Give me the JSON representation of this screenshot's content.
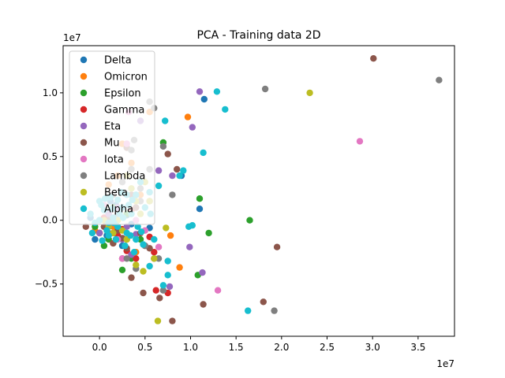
{
  "chart_data": {
    "type": "scatter",
    "title": "PCA - Training data 2D",
    "xlabel": "",
    "ylabel": "",
    "x_offset_label": "1e7",
    "y_offset_label": "1e7",
    "xlim": [
      -0.4,
      3.9
    ],
    "ylim": [
      -0.91,
      1.37
    ],
    "x_ticks": [
      0.0,
      0.5,
      1.0,
      1.5,
      2.0,
      2.5,
      3.0,
      3.5
    ],
    "x_tick_labels": [
      "0.0",
      "0.5",
      "1.0",
      "1.5",
      "2.0",
      "2.5",
      "3.0",
      "3.5"
    ],
    "y_ticks": [
      -0.5,
      0.0,
      0.5,
      1.0
    ],
    "y_tick_labels": [
      "−0.5",
      "0.0",
      "0.5",
      "1.0"
    ],
    "grid": false,
    "legend_position": "top-left",
    "series": [
      {
        "name": "Delta",
        "color": "#1f77b4",
        "points": [
          [
            0.0,
            0.0
          ],
          [
            0.05,
            -0.05
          ],
          [
            0.1,
            0.05
          ],
          [
            0.15,
            -0.1
          ],
          [
            -0.05,
            -0.15
          ],
          [
            0.2,
            -0.08
          ],
          [
            0.3,
            0.04
          ],
          [
            0.12,
            0.15
          ],
          [
            0.4,
            0.2
          ],
          [
            0.55,
            -0.06
          ],
          [
            0.9,
            0.35
          ],
          [
            1.15,
            0.95
          ],
          [
            1.1,
            0.09
          ],
          [
            0.25,
            -0.2
          ],
          [
            0.18,
            0.12
          ],
          [
            0.08,
            -0.12
          ],
          [
            0.35,
            -0.03
          ],
          [
            -0.1,
            0.02
          ]
        ]
      },
      {
        "name": "Omicron",
        "color": "#ff7f0e",
        "points": [
          [
            0.97,
            0.81
          ],
          [
            0.78,
            -0.12
          ],
          [
            0.88,
            -0.37
          ],
          [
            0.45,
            0.2
          ],
          [
            0.2,
            0.35
          ],
          [
            0.1,
            0.28
          ],
          [
            0.3,
            -0.15
          ],
          [
            0.05,
            0.1
          ],
          [
            0.55,
            0.85
          ],
          [
            0.25,
            0.6
          ],
          [
            0.15,
            -0.05
          ],
          [
            0.4,
            -0.25
          ],
          [
            0.35,
            0.45
          ],
          [
            -0.05,
            -0.08
          ]
        ]
      },
      {
        "name": "Epsilon",
        "color": "#2ca02c",
        "points": [
          [
            0.7,
            0.61
          ],
          [
            1.1,
            0.17
          ],
          [
            1.2,
            -0.1
          ],
          [
            1.65,
            0.0
          ],
          [
            1.08,
            -0.43
          ],
          [
            0.25,
            -0.39
          ],
          [
            0.0,
            -0.1
          ],
          [
            0.1,
            -0.15
          ],
          [
            0.2,
            -0.05
          ],
          [
            0.3,
            0.05
          ],
          [
            0.05,
            -0.2
          ],
          [
            0.15,
            0.1
          ],
          [
            0.35,
            -0.3
          ],
          [
            0.45,
            -0.15
          ],
          [
            -0.05,
            -0.05
          ]
        ]
      },
      {
        "name": "Gamma",
        "color": "#d62728",
        "points": [
          [
            0.62,
            -0.55
          ],
          [
            0.75,
            -0.57
          ],
          [
            0.55,
            -0.13
          ],
          [
            0.25,
            -0.07
          ],
          [
            0.3,
            -0.24
          ],
          [
            0.2,
            -0.12
          ],
          [
            0.1,
            -0.05
          ],
          [
            0.4,
            -0.3
          ],
          [
            0.35,
            0.08
          ],
          [
            0.05,
            0.02
          ],
          [
            0.15,
            -0.18
          ],
          [
            0.5,
            -0.2
          ],
          [
            0.0,
            -0.1
          ],
          [
            0.6,
            -0.25
          ]
        ]
      },
      {
        "name": "Eta",
        "color": "#9467bd",
        "points": [
          [
            1.1,
            1.01
          ],
          [
            1.02,
            0.73
          ],
          [
            0.65,
            0.39
          ],
          [
            0.8,
            0.35
          ],
          [
            0.45,
            0.78
          ],
          [
            0.99,
            -0.21
          ],
          [
            1.13,
            -0.41
          ],
          [
            0.77,
            -0.52
          ],
          [
            0.35,
            -0.27
          ],
          [
            0.4,
            -0.11
          ],
          [
            0.3,
            -0.05
          ],
          [
            0.2,
            0.1
          ],
          [
            0.55,
            0.15
          ],
          [
            0.25,
            -0.15
          ],
          [
            0.1,
            0.05
          ],
          [
            0.0,
            -0.1
          ],
          [
            0.15,
            -0.02
          ]
        ]
      },
      {
        "name": "Mu",
        "color": "#8c564b",
        "points": [
          [
            3.01,
            1.27
          ],
          [
            0.75,
            0.52
          ],
          [
            0.85,
            0.4
          ],
          [
            1.95,
            -0.21
          ],
          [
            1.8,
            -0.64
          ],
          [
            1.14,
            -0.66
          ],
          [
            0.8,
            -0.79
          ],
          [
            0.66,
            -0.61
          ],
          [
            0.48,
            -0.57
          ],
          [
            0.35,
            -0.45
          ],
          [
            0.55,
            -0.22
          ],
          [
            0.6,
            -0.3
          ],
          [
            0.25,
            -0.14
          ],
          [
            0.3,
            -0.22
          ],
          [
            0.2,
            -0.08
          ],
          [
            0.1,
            0.0
          ],
          [
            0.15,
            -0.18
          ],
          [
            0.45,
            -0.1
          ],
          [
            0.05,
            -0.05
          ],
          [
            0.35,
            0.2
          ],
          [
            0.3,
            0.57
          ],
          [
            -0.15,
            -0.05
          ],
          [
            0.25,
            -0.3
          ],
          [
            0.4,
            0.1
          ]
        ]
      },
      {
        "name": "Iota",
        "color": "#e377c2",
        "points": [
          [
            2.86,
            0.62
          ],
          [
            1.3,
            -0.55
          ],
          [
            0.65,
            -0.21
          ],
          [
            0.3,
            0.6
          ],
          [
            0.32,
            0.85
          ],
          [
            0.5,
            -0.08
          ],
          [
            0.2,
            -0.15
          ],
          [
            0.15,
            0.2
          ],
          [
            0.25,
            -0.3
          ],
          [
            0.1,
            -0.05
          ],
          [
            0.4,
            0.0
          ],
          [
            0.05,
            0.12
          ]
        ]
      },
      {
        "name": "Lambda",
        "color": "#7f7f7f",
        "points": [
          [
            1.82,
            1.03
          ],
          [
            3.73,
            1.1
          ],
          [
            1.92,
            -0.71
          ],
          [
            0.6,
            0.88
          ],
          [
            0.55,
            0.93
          ],
          [
            0.7,
            0.58
          ],
          [
            0.8,
            0.2
          ],
          [
            0.45,
            0.25
          ],
          [
            0.38,
            0.63
          ],
          [
            0.35,
            0.55
          ],
          [
            0.45,
            0.15
          ],
          [
            0.4,
            -0.38
          ],
          [
            0.65,
            -0.3
          ],
          [
            0.7,
            -0.55
          ],
          [
            0.5,
            -0.2
          ],
          [
            0.3,
            -0.3
          ],
          [
            0.25,
            0.3
          ],
          [
            0.55,
            0.4
          ],
          [
            0.2,
            0.05
          ],
          [
            0.1,
            -0.1
          ],
          [
            0.35,
            0.4
          ],
          [
            0.15,
            0.2
          ]
        ]
      },
      {
        "name": "Beta",
        "color": "#bcbd22",
        "points": [
          [
            2.31,
            1.0
          ],
          [
            0.64,
            -0.79
          ],
          [
            0.73,
            -0.06
          ],
          [
            0.48,
            -0.4
          ],
          [
            0.55,
            0.15
          ],
          [
            0.4,
            -0.35
          ],
          [
            0.45,
            0.05
          ],
          [
            0.6,
            -0.3
          ],
          [
            0.35,
            0.25
          ],
          [
            0.3,
            -0.15
          ],
          [
            0.25,
            -0.08
          ],
          [
            0.2,
            0.0
          ],
          [
            0.15,
            -0.1
          ],
          [
            0.1,
            -0.05
          ],
          [
            0.4,
            0.15
          ],
          [
            0.5,
            0.3
          ],
          [
            0.05,
            0.0
          ],
          [
            0.3,
            0.35
          ]
        ]
      },
      {
        "name": "Alpha",
        "color": "#17becf",
        "points": [
          [
            1.29,
            1.01
          ],
          [
            1.38,
            0.87
          ],
          [
            1.14,
            0.53
          ],
          [
            0.92,
            0.39
          ],
          [
            0.88,
            0.35
          ],
          [
            0.72,
            0.78
          ],
          [
            0.65,
            0.27
          ],
          [
            0.75,
            -0.32
          ],
          [
            0.75,
            -0.43
          ],
          [
            0.7,
            -0.51
          ],
          [
            0.98,
            -0.05
          ],
          [
            1.02,
            -0.04
          ],
          [
            1.63,
            -0.71
          ],
          [
            0.55,
            -0.36
          ],
          [
            0.48,
            -0.19
          ],
          [
            0.4,
            0.2
          ],
          [
            0.35,
            0.05
          ],
          [
            0.3,
            -0.1
          ],
          [
            0.25,
            0.1
          ],
          [
            0.2,
            -0.05
          ],
          [
            0.15,
            0.02
          ],
          [
            0.1,
            -0.12
          ],
          [
            0.05,
            0.08
          ],
          [
            0.0,
            0.0
          ],
          [
            -0.05,
            -0.02
          ],
          [
            -0.1,
            0.05
          ],
          [
            0.02,
            0.12
          ],
          [
            0.12,
            0.18
          ],
          [
            0.08,
            -0.08
          ],
          [
            0.18,
            -0.15
          ],
          [
            0.22,
            0.05
          ],
          [
            0.28,
            -0.2
          ],
          [
            0.32,
            0.12
          ],
          [
            0.38,
            -0.25
          ],
          [
            0.42,
            -0.05
          ],
          [
            0.45,
            0.3
          ],
          [
            0.5,
            0.1
          ],
          [
            0.55,
            0.22
          ],
          [
            0.6,
            -0.15
          ],
          [
            0.03,
            -0.16
          ],
          [
            0.14,
            0.09
          ],
          [
            0.24,
            0.22
          ],
          [
            0.34,
            -0.12
          ],
          [
            -0.08,
            -0.1
          ],
          [
            0.06,
            0.17
          ],
          [
            0.16,
            -0.02
          ],
          [
            0.26,
            0.02
          ],
          [
            0.36,
            0.16
          ],
          [
            0.46,
            -0.09
          ],
          [
            0.56,
            0.05
          ],
          [
            0.0,
            0.15
          ],
          [
            0.1,
            -0.02
          ],
          [
            0.2,
            0.16
          ],
          [
            0.3,
            0.2
          ],
          [
            0.4,
            -0.15
          ]
        ]
      }
    ]
  }
}
